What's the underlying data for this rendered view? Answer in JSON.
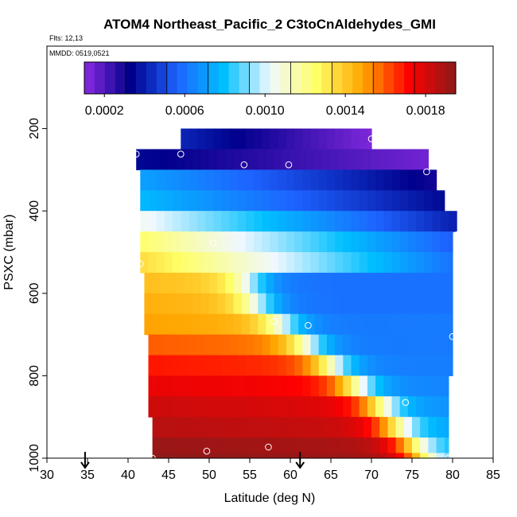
{
  "chart_data": {
    "type": "heatmap",
    "title": "ATOM4 Northeast_Pacific_2 C3toCnAldehydes_GMI",
    "flights_label": "Flts: 12,13",
    "mmdd_label": "MMDD: 0519,0521",
    "xlabel": "Latitude (deg N)",
    "ylabel": "PSXC (mbar)",
    "xlim": [
      30,
      85
    ],
    "ylim": [
      1000,
      0
    ],
    "x_ticks": [
      "30",
      "35",
      "40",
      "45",
      "50",
      "55",
      "60",
      "65",
      "70",
      "75",
      "80",
      "85"
    ],
    "y_ticks": [
      "200",
      "400",
      "600",
      "800",
      "1000"
    ],
    "colorbar": {
      "range": [
        0.0001,
        0.00195
      ],
      "tick_values": [
        0.0002,
        0.0006,
        0.001,
        0.0014,
        0.0018
      ],
      "tick_labels": [
        "0.0002",
        "0.0006",
        "0.0010",
        "0.0014",
        "0.0018"
      ],
      "colors": [
        "#8a2be2",
        "#00008b",
        "#1e63ff",
        "#00bfff",
        "#f0f8ff",
        "#ffff66",
        "#ffa500",
        "#ff0000",
        "#8b1a1a"
      ]
    },
    "levels": [
      {
        "p": 225,
        "lat_min": 46.5,
        "lat_max": 70,
        "v_start": 0.00042,
        "v_end": 0.00012,
        "transition": null
      },
      {
        "p": 275,
        "lat_min": 41,
        "lat_max": 77,
        "v_start": 0.00035,
        "v_end": 0.00014,
        "transition": null
      },
      {
        "p": 325,
        "lat_min": 41.5,
        "lat_max": 78,
        "v_start": 0.00072,
        "v_end": 0.0003,
        "transition": null
      },
      {
        "p": 375,
        "lat_min": 41.5,
        "lat_max": 79,
        "v_start": 0.00078,
        "v_end": 0.00035,
        "transition": null
      },
      {
        "p": 425,
        "lat_min": 41.5,
        "lat_max": 80.5,
        "v_start": 0.00105,
        "v_end": 0.0004,
        "transition": null
      },
      {
        "p": 475,
        "lat_min": 41.5,
        "lat_max": 80,
        "v_start": 0.00125,
        "v_end": 0.00055,
        "transition": null
      },
      {
        "p": 525,
        "lat_min": 41.5,
        "lat_max": 80,
        "v_start": 0.00135,
        "v_end": 0.0006,
        "transition": null
      },
      {
        "p": 575,
        "lat_min": 42,
        "lat_max": 80,
        "v_start": 0.00138,
        "v_end": 0.0006,
        "transition": 55
      },
      {
        "p": 625,
        "lat_min": 42,
        "lat_max": 80,
        "v_start": 0.00142,
        "v_end": 0.0006,
        "transition": 56
      },
      {
        "p": 675,
        "lat_min": 42,
        "lat_max": 80,
        "v_start": 0.00145,
        "v_end": 0.00062,
        "transition": 59
      },
      {
        "p": 725,
        "lat_min": 42.5,
        "lat_max": 80,
        "v_start": 0.00155,
        "v_end": 0.00062,
        "transition": 62
      },
      {
        "p": 775,
        "lat_min": 42.5,
        "lat_max": 80,
        "v_start": 0.00165,
        "v_end": 0.00063,
        "transition": 65
      },
      {
        "p": 825,
        "lat_min": 42.5,
        "lat_max": 79.5,
        "v_start": 0.00172,
        "v_end": 0.00065,
        "transition": 68
      },
      {
        "p": 875,
        "lat_min": 42.5,
        "lat_max": 79.5,
        "v_start": 0.00178,
        "v_end": 0.00068,
        "transition": 71
      },
      {
        "p": 925,
        "lat_min": 43,
        "lat_max": 79.5,
        "v_start": 0.00182,
        "v_end": 0.00072,
        "transition": 73
      },
      {
        "p": 975,
        "lat_min": 43,
        "lat_max": 79.5,
        "v_start": 0.00188,
        "v_end": 0.00075,
        "transition": 75
      },
      {
        "p": 1000,
        "lat_min": 43,
        "lat_max": 79.5,
        "v_start": 0.0019,
        "v_end": 0.0008,
        "transition": 76
      }
    ],
    "markers": [
      {
        "lat": 70,
        "p": 225
      },
      {
        "lat": 46.5,
        "p": 262
      },
      {
        "lat": 41,
        "p": 262
      },
      {
        "lat": 54.3,
        "p": 288
      },
      {
        "lat": 59.8,
        "p": 288
      },
      {
        "lat": 76.8,
        "p": 305
      },
      {
        "lat": 80.5,
        "p": 458
      },
      {
        "lat": 50.5,
        "p": 478
      },
      {
        "lat": 41.5,
        "p": 528
      },
      {
        "lat": 58,
        "p": 668
      },
      {
        "lat": 62.2,
        "p": 678
      },
      {
        "lat": 80,
        "p": 705
      },
      {
        "lat": 74.2,
        "p": 865
      },
      {
        "lat": 57.3,
        "p": 973
      },
      {
        "lat": 49.7,
        "p": 983
      },
      {
        "lat": 43,
        "p": 1000
      },
      {
        "lat": 79.5,
        "p": 1000
      }
    ],
    "arrows": [
      {
        "lat": 34.7,
        "p": 975
      },
      {
        "lat": 61.2,
        "p": 975
      }
    ]
  }
}
